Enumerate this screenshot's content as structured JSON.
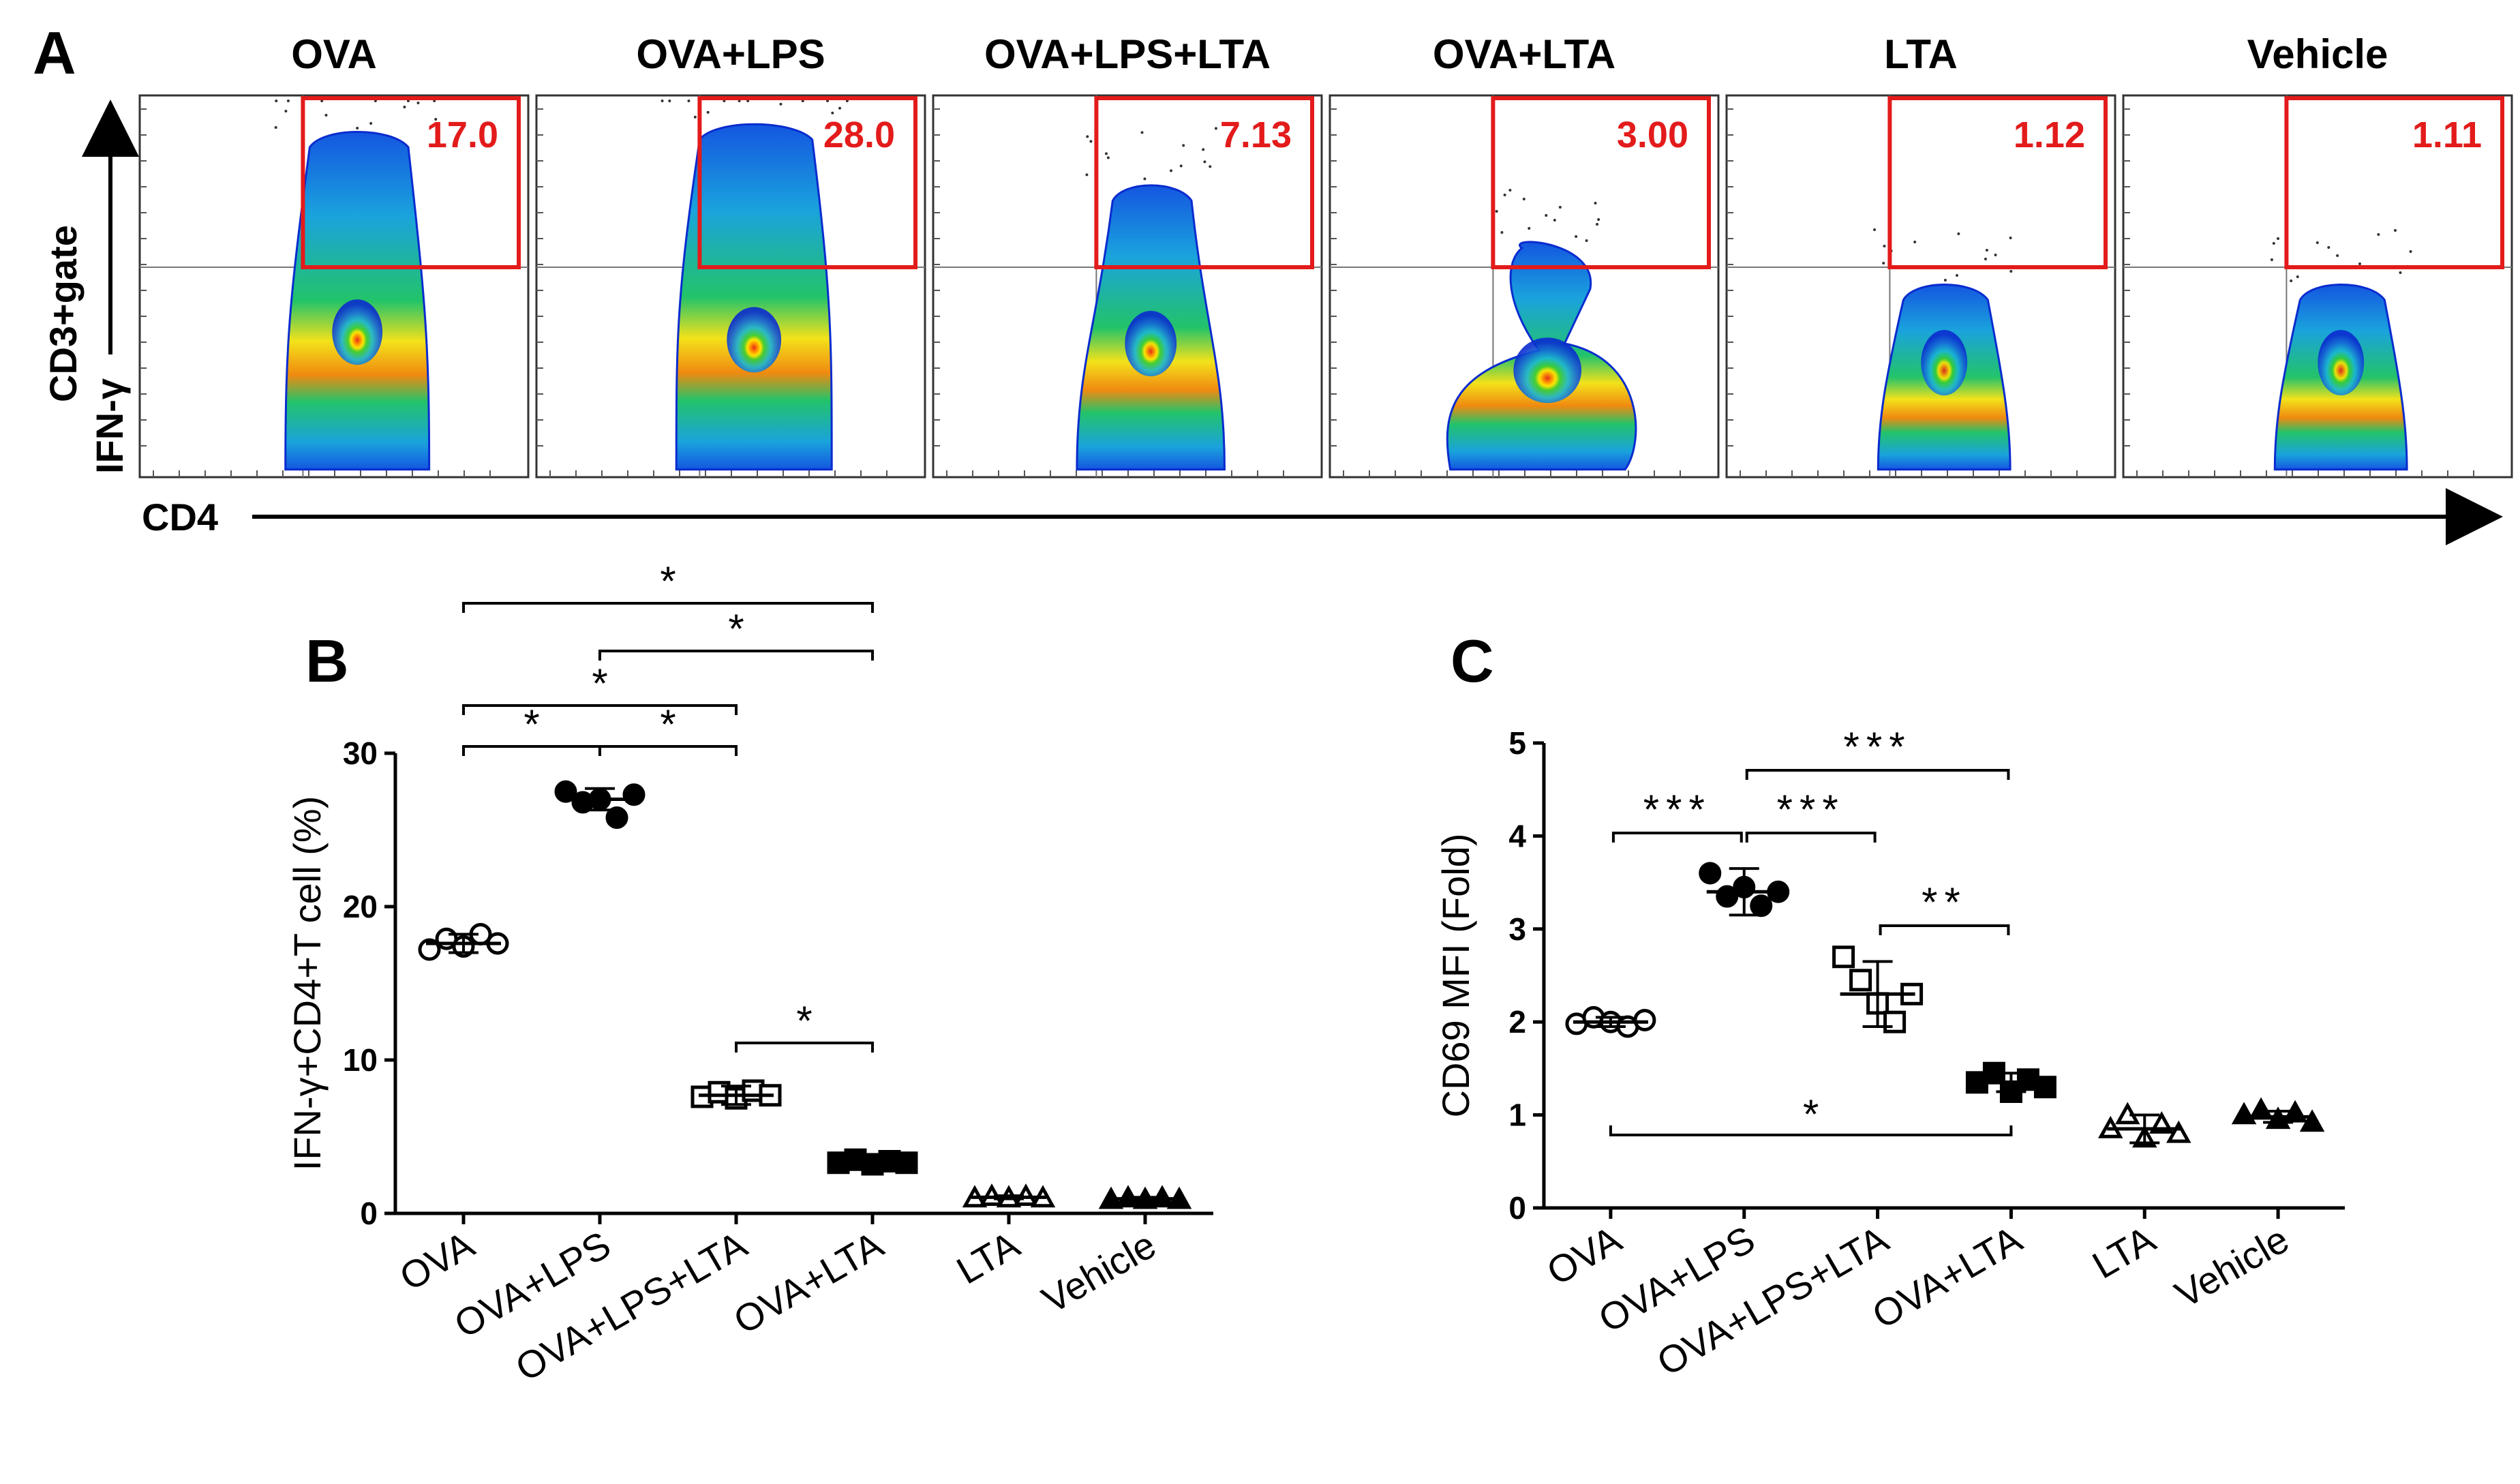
{
  "panel_a": {
    "label": "A",
    "y_axis_label_1": "CD3+gate",
    "y_axis_label_2": "IFN-γ",
    "x_axis_label": "CD4",
    "plots": [
      {
        "title": "OVA",
        "gate_value": "17.0",
        "shape": "tall"
      },
      {
        "title": "OVA+LPS",
        "gate_value": "28.0",
        "shape": "taller"
      },
      {
        "title": "OVA+LPS+LTA",
        "gate_value": "7.13",
        "shape": "mid"
      },
      {
        "title": "OVA+LTA",
        "gate_value": "3.00",
        "shape": "split"
      },
      {
        "title": "LTA",
        "gate_value": "1.12",
        "shape": "short"
      },
      {
        "title": "Vehicle",
        "gate_value": "1.11",
        "shape": "short"
      }
    ]
  },
  "chart_data": [
    {
      "type": "scatter",
      "panel": "B",
      "ylabel": "IFN-γ+CD4+T cell (%)",
      "ylim": [
        0,
        30
      ],
      "yticks": [
        "0",
        "10",
        "20",
        "30"
      ],
      "categories": [
        "OVA",
        "OVA+LPS",
        "OVA+LPS+LTA",
        "OVA+LTA",
        "LTA",
        "Vehicle"
      ],
      "markers": [
        "open-circle",
        "filled-circle",
        "open-square",
        "filled-square",
        "open-triangle",
        "filled-triangle"
      ],
      "values": [
        [
          17.2,
          17.9,
          17.4,
          18.2,
          17.6
        ],
        [
          27.5,
          26.8,
          27.0,
          25.8,
          27.3
        ],
        [
          7.6,
          7.9,
          7.5,
          8.0,
          7.7
        ],
        [
          3.3,
          3.5,
          3.2,
          3.4,
          3.3
        ],
        [
          1.0,
          1.1,
          1.0,
          1.1,
          1.0
        ],
        [
          0.9,
          1.0,
          0.9,
          1.0,
          0.9
        ]
      ],
      "means": [
        17.6,
        27.0,
        7.7,
        3.4,
        1.05,
        0.95
      ],
      "sd": [
        0.6,
        0.7,
        0.6,
        0.2,
        0.1,
        0.1
      ],
      "comparisons": [
        {
          "a": 0,
          "b": 3,
          "label": "*"
        },
        {
          "a": 1,
          "b": 3,
          "label": "*"
        },
        {
          "a": 0,
          "b": 2,
          "label": "*"
        },
        {
          "a": 0,
          "b": 1,
          "label": "*"
        },
        {
          "a": 1,
          "b": 2,
          "label": "*"
        },
        {
          "a": 2,
          "b": 3,
          "label": "*"
        }
      ]
    },
    {
      "type": "scatter",
      "panel": "C",
      "ylabel": "CD69 MFI (Fold)",
      "ylim": [
        0,
        5
      ],
      "yticks": [
        "0",
        "1",
        "2",
        "3",
        "4",
        "5"
      ],
      "categories": [
        "OVA",
        "OVA+LPS",
        "OVA+LPS+LTA",
        "OVA+LTA",
        "LTA",
        "Vehicle"
      ],
      "markers": [
        "open-circle",
        "filled-circle",
        "open-square",
        "filled-square",
        "open-triangle",
        "filled-triangle"
      ],
      "values": [
        [
          1.98,
          2.05,
          2.0,
          1.95,
          2.02
        ],
        [
          3.6,
          3.35,
          3.45,
          3.25,
          3.4
        ],
        [
          2.7,
          2.45,
          2.2,
          2.0,
          2.3
        ],
        [
          1.35,
          1.45,
          1.25,
          1.38,
          1.3
        ],
        [
          0.85,
          1.0,
          0.75,
          0.9,
          0.8
        ],
        [
          1.0,
          1.05,
          0.95,
          1.02,
          0.92
        ]
      ],
      "means": [
        2.0,
        3.4,
        2.3,
        1.35,
        0.85,
        0.98
      ],
      "sd": [
        0.05,
        0.25,
        0.35,
        0.1,
        0.15,
        0.06
      ],
      "comparisons": [
        {
          "a": 0,
          "b": 1,
          "label": "***",
          "pos": "above"
        },
        {
          "a": 1,
          "b": 2,
          "label": "***",
          "pos": "above"
        },
        {
          "a": 1,
          "b": 3,
          "label": "***",
          "pos": "above"
        },
        {
          "a": 2,
          "b": 3,
          "label": "**",
          "pos": "above"
        },
        {
          "a": 0,
          "b": 3,
          "label": "*",
          "pos": "below"
        }
      ]
    }
  ]
}
